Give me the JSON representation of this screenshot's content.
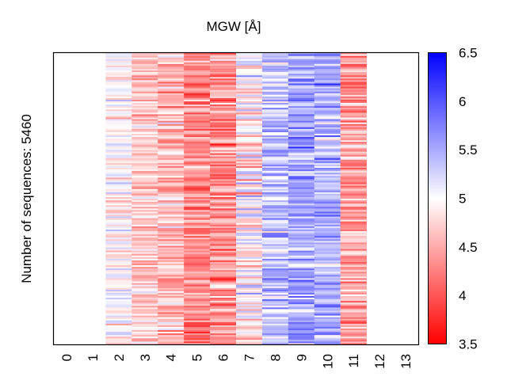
{
  "chart_data": {
    "type": "heatmap",
    "title": "MGW [Å]",
    "ylabel": "Number of sequences: 5460",
    "xlabel": "",
    "x_tick_labels": [
      "0",
      "1",
      "2",
      "3",
      "4",
      "5",
      "6",
      "7",
      "8",
      "9",
      "10",
      "11",
      "12",
      "13"
    ],
    "n_sequences": 5460,
    "positions": [
      0,
      1,
      2,
      3,
      4,
      5,
      6,
      7,
      8,
      9,
      10,
      11,
      12,
      13
    ],
    "columns_with_data": [
      2,
      3,
      4,
      5,
      6,
      7,
      8,
      9,
      10,
      11
    ],
    "column_mean_mgw": [
      null,
      null,
      4.95,
      4.7,
      4.6,
      4.25,
      4.35,
      4.95,
      5.35,
      5.55,
      5.45,
      4.5,
      null,
      null
    ],
    "column_spread_mgw": [
      null,
      null,
      0.35,
      0.35,
      0.45,
      0.45,
      0.5,
      0.55,
      0.5,
      0.45,
      0.45,
      0.45,
      null,
      null
    ],
    "colorbar": {
      "range": [
        3.5,
        6.5
      ],
      "ticks": [
        "3.5",
        "4",
        "4.5",
        "5",
        "5.5",
        "6",
        "6.5"
      ],
      "colormap": "bwr_reversed",
      "low_color": "#ff0000",
      "mid_color": "#ffffff",
      "high_color": "#0000ff"
    },
    "grid": false
  }
}
